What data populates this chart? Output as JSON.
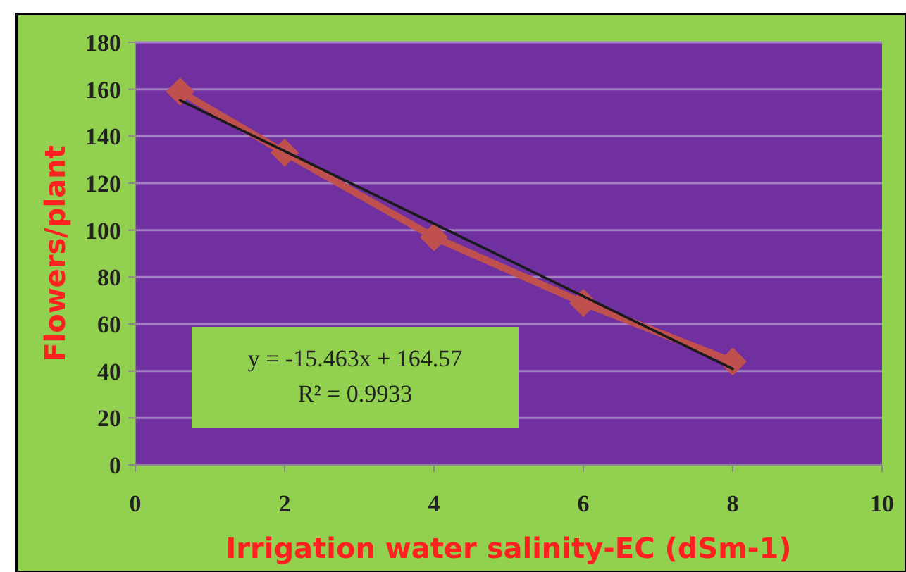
{
  "chart_data": {
    "type": "line",
    "xlabel": "Irrigation water salinity-EC (dSm-1)",
    "ylabel": "Flowers/plant",
    "x": [
      0.6,
      2,
      4,
      6,
      8
    ],
    "series": [
      {
        "color": "#c0504d",
        "values": [
          159,
          133,
          97,
          69,
          44
        ],
        "marker": "diamond"
      },
      {
        "type": "line",
        "color": "#1a1a1a",
        "x": [
          0.6,
          8
        ],
        "values": [
          155.3,
          40.9
        ],
        "marker": "none"
      }
    ],
    "annotations": [
      "y = -15.463x + 164.57\nR² = 0.9933"
    ],
    "xlim": [
      0,
      10
    ],
    "xticks": [
      0,
      2,
      4,
      6,
      8,
      10
    ],
    "ylim": [
      0,
      180
    ],
    "yticks": [
      0,
      20,
      40,
      60,
      80,
      100,
      120,
      140,
      160,
      180
    ],
    "grid": "y"
  }
}
